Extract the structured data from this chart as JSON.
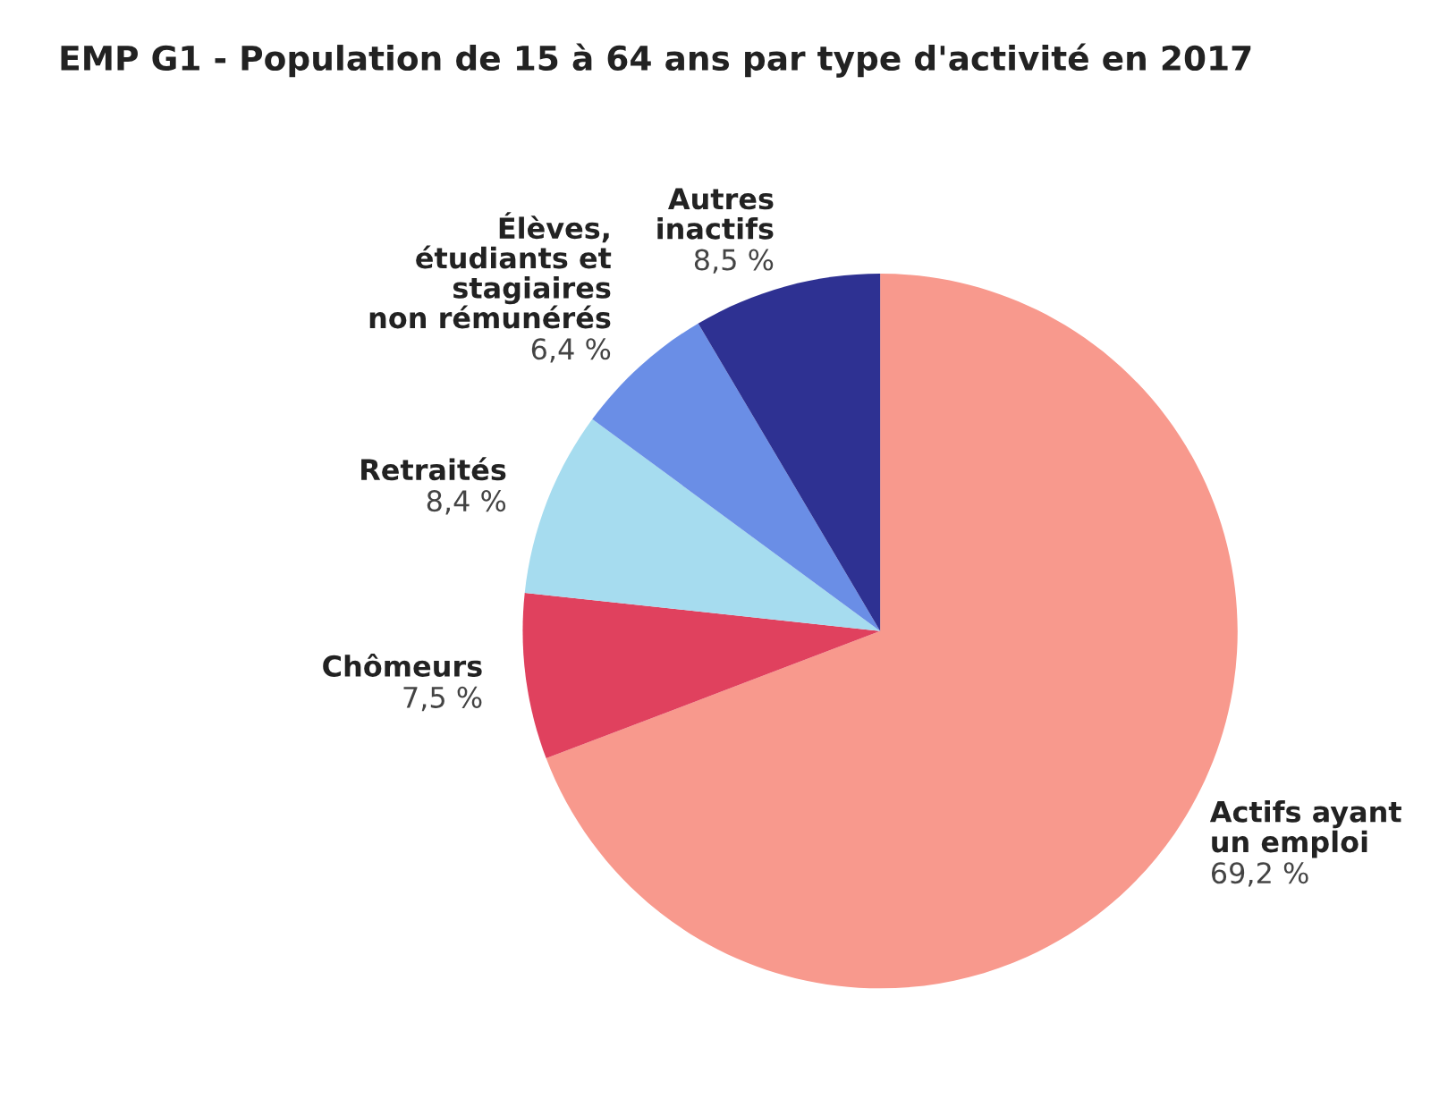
{
  "chart_data": {
    "type": "pie",
    "title": "EMP G1 - Population de 15 à 64 ans par type d'activité en 2017",
    "categories": [
      "Actifs ayant\nun emploi",
      "Chômeurs",
      "Retraités",
      "Élèves,\nétudiants et\nstagiaires\nnon rémunérés",
      "Autres\ninactifs"
    ],
    "values": [
      69.2,
      7.5,
      8.4,
      6.4,
      8.5
    ],
    "value_labels": [
      "69,2 %",
      "7,5 %",
      "8,4 %",
      "6,4 %",
      "8,5 %"
    ],
    "colors": [
      "#f8998d",
      "#e0415e",
      "#a6dcef",
      "#6a8ee6",
      "#2e3192"
    ],
    "legend": false
  }
}
